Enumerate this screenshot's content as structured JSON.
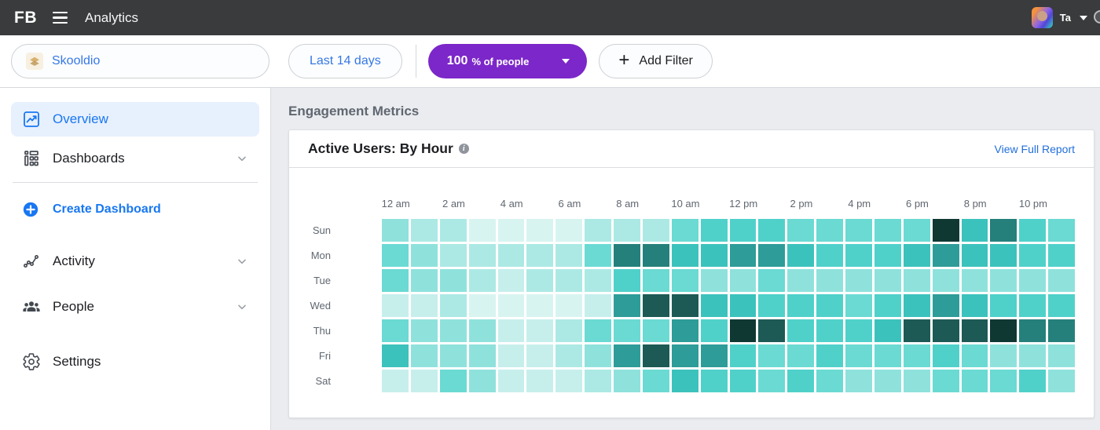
{
  "topbar": {
    "logo": "FB",
    "title": "Analytics",
    "user_name": "Ta"
  },
  "filterbar": {
    "entity_label": "Skooldio",
    "date_range_label": "Last 14 days",
    "percent_value": "100",
    "percent_suffix": "% of people",
    "add_filter_plus": "+",
    "add_filter_label": "Add Filter"
  },
  "sidebar": {
    "items": [
      {
        "label": "Overview",
        "icon": "line-chart-icon",
        "selected": true
      },
      {
        "label": "Dashboards",
        "icon": "dashboards-icon",
        "chevron": true
      },
      {
        "label": "Create Dashboard",
        "icon": "plus-circle-icon",
        "action": true
      },
      {
        "label": "Activity",
        "icon": "activity-icon",
        "chevron": true
      },
      {
        "label": "People",
        "icon": "people-icon",
        "chevron": true
      },
      {
        "label": "Settings",
        "icon": "gear-icon",
        "chevron": false
      }
    ]
  },
  "main": {
    "section_title": "Engagement Metrics",
    "card_title": "Active Users: By Hour",
    "info_glyph": "i",
    "view_report_link": "View Full Report"
  },
  "colors": {
    "accent_purple": "#7c27c9",
    "link_blue": "#216fdb",
    "selected_blue": "#1877f2",
    "topbar_bg": "#3a3b3c"
  },
  "chart_data": {
    "type": "heatmap",
    "title": "Active Users: By Hour",
    "x_labels": [
      "12 am",
      "2 am",
      "4 am",
      "6 am",
      "8 am",
      "10 am",
      "12 pm",
      "2 pm",
      "4 pm",
      "6 pm",
      "8 pm",
      "10 pm"
    ],
    "columns_per_label": 2,
    "hours_per_row": 24,
    "y_labels": [
      "Sun",
      "Mon",
      "Tue",
      "Wed",
      "Thu",
      "Fri",
      "Sat"
    ],
    "legend": "intensity index 0 (lightest) .. 10 (darkest)",
    "palette": [
      "#d8f4f1",
      "#c6efec",
      "#ace9e4",
      "#8fe2dc",
      "#6adad3",
      "#4fd1ca",
      "#3cc2bc",
      "#2e9c98",
      "#25807b",
      "#1d5a55",
      "#0f3833"
    ],
    "values": [
      [
        3,
        2,
        2,
        0,
        0,
        0,
        0,
        2,
        2,
        2,
        4,
        5,
        5,
        5,
        4,
        4,
        4,
        4,
        4,
        10,
        6,
        8,
        5,
        4
      ],
      [
        4,
        3,
        2,
        2,
        2,
        2,
        2,
        4,
        8,
        8,
        6,
        6,
        7,
        7,
        6,
        5,
        5,
        5,
        6,
        7,
        6,
        6,
        5,
        5
      ],
      [
        4,
        3,
        3,
        2,
        1,
        2,
        2,
        2,
        5,
        4,
        4,
        3,
        3,
        4,
        3,
        3,
        3,
        3,
        3,
        3,
        3,
        3,
        3,
        3
      ],
      [
        1,
        1,
        2,
        0,
        0,
        0,
        0,
        1,
        7,
        9,
        9,
        6,
        6,
        5,
        5,
        5,
        4,
        5,
        6,
        7,
        6,
        5,
        5,
        5
      ],
      [
        4,
        3,
        3,
        3,
        1,
        1,
        2,
        4,
        4,
        4,
        7,
        5,
        10,
        9,
        5,
        5,
        5,
        6,
        9,
        9,
        9,
        10,
        8,
        8
      ],
      [
        6,
        3,
        3,
        3,
        1,
        1,
        2,
        3,
        7,
        9,
        7,
        7,
        5,
        4,
        4,
        5,
        4,
        4,
        4,
        5,
        4,
        3,
        3,
        3
      ],
      [
        1,
        1,
        4,
        3,
        1,
        1,
        1,
        2,
        3,
        4,
        6,
        5,
        5,
        4,
        5,
        4,
        3,
        3,
        3,
        4,
        4,
        4,
        5,
        3
      ]
    ]
  }
}
